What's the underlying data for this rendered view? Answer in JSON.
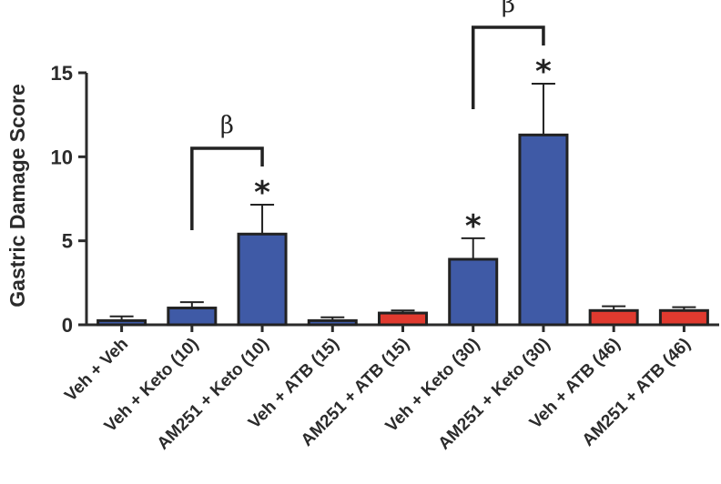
{
  "chart_data": {
    "type": "bar",
    "ylabel": "Gastric Damage Score",
    "ylim": [
      0,
      15
    ],
    "yticks": [
      "0",
      "5",
      "10",
      "15"
    ],
    "grid": false,
    "categories": [
      "Veh + Veh",
      "Veh + Keto (10)",
      "AM251 + Keto (10)",
      "Veh + ATB (15)",
      "AM251 + ATB (15)",
      "Veh + Keto (30)",
      "AM251 + Keto (30)",
      "Veh + ATB (46)",
      "AM251 + ATB (46)"
    ],
    "values": [
      0.25,
      1.0,
      5.4,
      0.25,
      0.7,
      3.9,
      11.3,
      0.85,
      0.85
    ],
    "errors": [
      0.25,
      0.35,
      1.75,
      0.2,
      0.15,
      1.25,
      3.05,
      0.25,
      0.2
    ],
    "colors": [
      "#3f5aa6",
      "#3f5aa6",
      "#3f5aa6",
      "#3f5aa6",
      "#e03a2f",
      "#3f5aa6",
      "#3f5aa6",
      "#e03a2f",
      "#e03a2f"
    ],
    "significance": [
      {
        "category": 2,
        "label": "*"
      },
      {
        "category": 5,
        "label": "*"
      },
      {
        "category": 6,
        "label": "*"
      }
    ],
    "comparisons": [
      {
        "from": 1,
        "to": 2,
        "label": "β"
      },
      {
        "from": 5,
        "to": 6,
        "label": "β"
      }
    ]
  }
}
